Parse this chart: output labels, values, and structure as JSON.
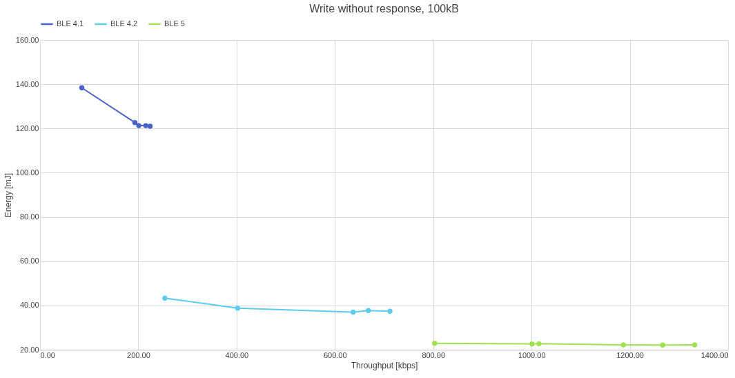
{
  "chart_data": {
    "type": "line",
    "title": "Write without response, 100kB",
    "xlabel": "Throughput [kbps]",
    "ylabel": "Energy [mJ]",
    "xlim": [
      0,
      1400
    ],
    "ylim": [
      20,
      160
    ],
    "xticks": [
      {
        "value": 0,
        "label": "0.00"
      },
      {
        "value": 200,
        "label": "200.00"
      },
      {
        "value": 400,
        "label": "400.00"
      },
      {
        "value": 600,
        "label": "600.00"
      },
      {
        "value": 800,
        "label": "800.00"
      },
      {
        "value": 1000,
        "label": "1000.00"
      },
      {
        "value": 1200,
        "label": "1200.00"
      },
      {
        "value": 1400,
        "label": "1400.00"
      }
    ],
    "yticks": [
      {
        "value": 20,
        "label": "20.00"
      },
      {
        "value": 40,
        "label": "40.00"
      },
      {
        "value": 60,
        "label": "60.00"
      },
      {
        "value": 80,
        "label": "80.00"
      },
      {
        "value": 100,
        "label": "100.00"
      },
      {
        "value": 120,
        "label": "120.00"
      },
      {
        "value": 140,
        "label": "140.00"
      },
      {
        "value": 160,
        "label": "160.00"
      }
    ],
    "grid": true,
    "legend": "top",
    "marker": "circle",
    "line_style": "solid",
    "series": [
      {
        "name": "BLE 4.1",
        "color": "#4a62c8",
        "x": [
          85,
          193,
          201,
          215,
          224
        ],
        "values": [
          138.4,
          122.7,
          121.3,
          121.3,
          121.0
        ]
      },
      {
        "name": "BLE 4.2",
        "color": "#5ccbf0",
        "x": [
          254,
          402,
          637,
          668,
          712
        ],
        "values": [
          43.3,
          38.8,
          37.0,
          37.7,
          37.4
        ]
      },
      {
        "name": "BLE 5",
        "color": "#9fe24f",
        "x": [
          803,
          1001,
          1015,
          1187,
          1267,
          1332
        ],
        "values": [
          22.9,
          22.6,
          22.7,
          22.2,
          22.1,
          22.2
        ]
      }
    ]
  }
}
